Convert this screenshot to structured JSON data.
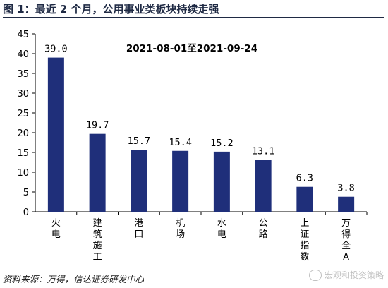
{
  "title": "图 1：最近 2 个月，公用事业类板块持续走强",
  "source": "资料来源：万得，信达证券研发中心",
  "watermark": "宏观和投资策略",
  "colors": {
    "bar": "#1f2f7a",
    "axis": "#000000"
  },
  "chart_data": {
    "type": "bar",
    "annotation": "2021-08-01至2021-09-24",
    "categories": [
      "火电",
      "建筑施工",
      "港口",
      "机场",
      "水电",
      "公路",
      "上证指数",
      "万得全A"
    ],
    "values": [
      39.0,
      19.7,
      15.7,
      15.4,
      15.2,
      13.1,
      6.3,
      3.8
    ],
    "value_labels": [
      "39.0",
      "19.7",
      "15.7",
      "15.4",
      "15.2",
      "13.1",
      "6.3",
      "3.8"
    ],
    "ylim": [
      0,
      45
    ],
    "yticks": [
      0,
      5,
      10,
      15,
      20,
      25,
      30,
      35,
      40,
      45
    ],
    "grid": false,
    "xlabel": "",
    "ylabel": ""
  }
}
